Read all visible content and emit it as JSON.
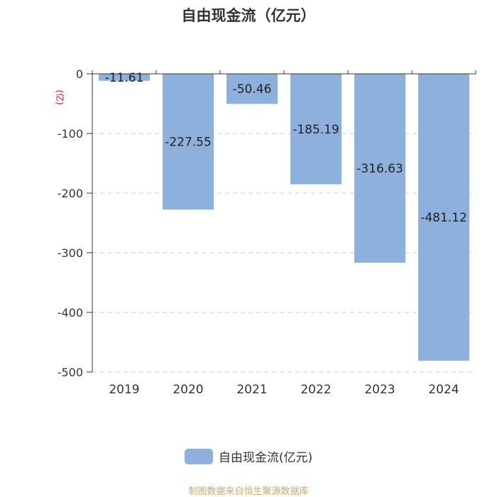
{
  "title": "自由现金流（亿元）",
  "source": "制图数据来自恒生聚源数据库",
  "chart_data": {
    "type": "bar",
    "title": "自由现金流（亿元）",
    "categories": [
      "2019",
      "2020",
      "2021",
      "2022",
      "2023",
      "2024"
    ],
    "series": [
      {
        "name": "自由现金流(亿元)",
        "values": [
          -11.61,
          -227.55,
          -50.46,
          -185.19,
          -316.63,
          -481.12
        ],
        "labels": [
          "-11.61",
          "-227.55",
          "-50.46",
          "-185.19",
          "-316.63",
          "-481.12"
        ]
      }
    ],
    "ylabel": "(亿)",
    "yticks": [
      "0",
      "-100",
      "-200",
      "-300",
      "-400",
      "-500"
    ],
    "ytick_values": [
      0,
      -100,
      -200,
      -300,
      -400,
      -500
    ],
    "ylim": [
      -500,
      0
    ],
    "grid": true,
    "legend_position": "bottom",
    "colors": {
      "bar": "#8eb0dd",
      "ylabel": "#ff0000",
      "grid": "#cccccc",
      "axis": "#333333",
      "source": "#c8a96a"
    }
  }
}
